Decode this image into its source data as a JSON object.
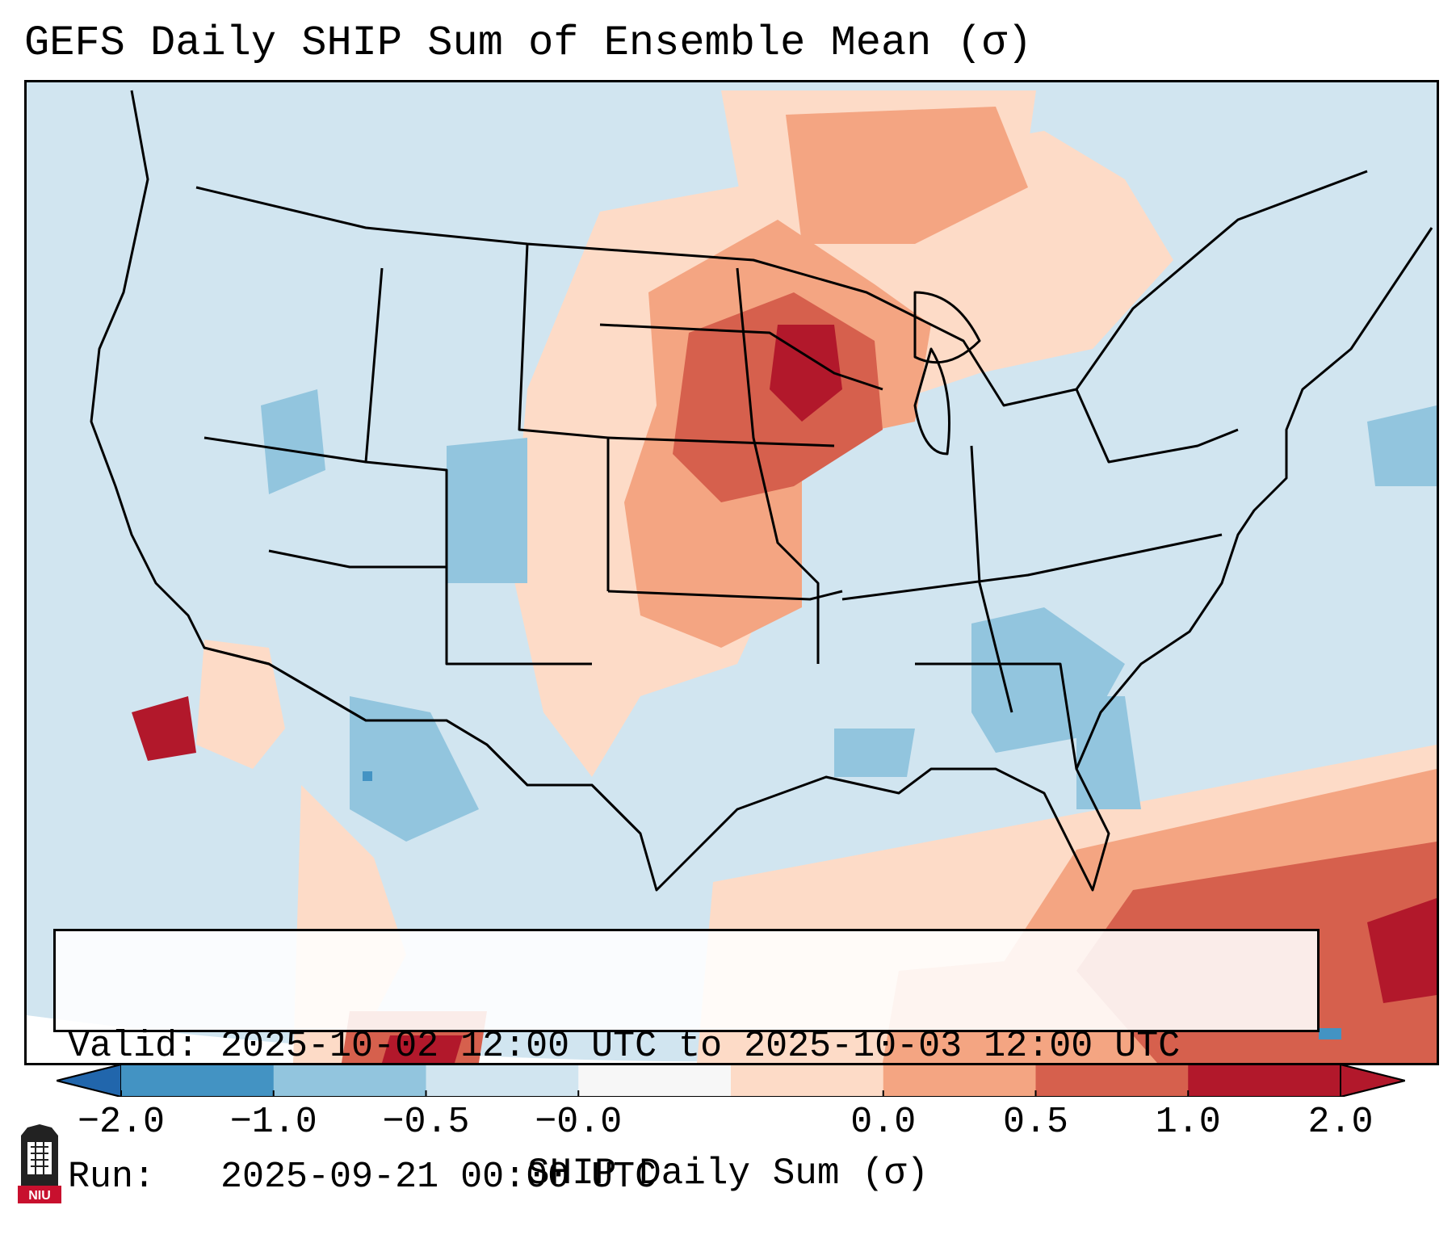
{
  "title": "GEFS Daily SHIP Sum of Ensemble Mean (σ)",
  "valid_line": "Valid: 2025-10-02 12:00 UTC to 2025-10-03 12:00 UTC",
  "run_line": "Run:   2025-09-21 00:00 UTC",
  "colorbar": {
    "label": "SHIP Daily Sum (σ)",
    "tick_labels": [
      "−2.0",
      "−1.0",
      "−0.5",
      "−0.0",
      "0.0",
      "0.5",
      "1.0",
      "2.0"
    ],
    "colors": [
      "#4393c3",
      "#92c5de",
      "#d1e5f0",
      "#f7f7f7",
      "#fddbc7",
      "#f4a582",
      "#d6604d",
      "#b2182b"
    ],
    "extend": "both"
  },
  "map": {
    "projection": "Lambert Conformal (CONUS)",
    "ocean_color": "#d1e5f0",
    "regions_anomaly": [
      {
        "area": "Upper Midwest / Iowa-Minnesota",
        "level": "2.0"
      },
      {
        "area": "Nebraska / Kansas / Missouri",
        "level": "1.0"
      },
      {
        "area": "Northern Great Lakes / Ontario",
        "level": "0.5"
      },
      {
        "area": "Colorado / Utah",
        "level": "-0.5"
      },
      {
        "area": "Georgia / Alabama / South Carolina",
        "level": "-0.5"
      },
      {
        "area": "Caribbean / Bahamas / Cuba",
        "level": "2.0"
      },
      {
        "area": "Gulf of Mexico",
        "level": "0.5"
      },
      {
        "area": "Baja California Pacific",
        "level": "2.0"
      }
    ]
  },
  "logo": {
    "text": "NIU"
  }
}
